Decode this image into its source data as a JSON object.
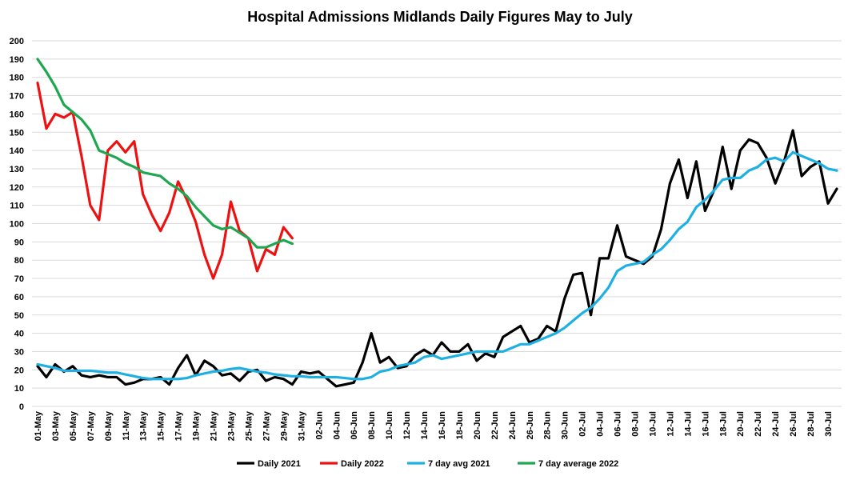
{
  "chart_data": {
    "type": "line",
    "title": "Hospital Admissions Midlands Daily Figures May to July",
    "xlabel": "",
    "ylabel": "",
    "ylim": [
      0,
      200
    ],
    "ytick_step": 10,
    "grid": true,
    "legend_position": "bottom",
    "x_tick_labels": [
      "01-May",
      "03-May",
      "05-May",
      "07-May",
      "09-May",
      "11-May",
      "13-May",
      "15-May",
      "17-May",
      "19-May",
      "21-May",
      "23-May",
      "25-May",
      "27-May",
      "29-May",
      "31-May",
      "02-Jun",
      "04-Jun",
      "06-Jun",
      "08-Jun",
      "10-Jun",
      "12-Jun",
      "14-Jun",
      "16-Jun",
      "18-Jun",
      "20-Jun",
      "22-Jun",
      "24-Jun",
      "26-Jun",
      "28-Jun",
      "30-Jun",
      "02-Jul",
      "04-Jul",
      "06-Jul",
      "08-Jul",
      "10-Jul",
      "12-Jul",
      "14-Jul",
      "16-Jul",
      "18-Jul",
      "20-Jul",
      "22-Jul",
      "24-Jul",
      "26-Jul",
      "28-Jul",
      "30-Jul"
    ],
    "series": [
      {
        "name": "Daily 2021",
        "color": "#000000",
        "values": [
          22,
          16,
          23,
          19,
          22,
          17,
          16,
          17,
          16,
          16,
          12,
          13,
          15,
          15,
          16,
          12,
          21,
          28,
          17,
          25,
          22,
          17,
          18,
          14,
          19,
          20,
          14,
          16,
          15,
          12,
          19,
          18,
          19,
          15,
          11,
          12,
          13,
          24,
          40,
          24,
          27,
          21,
          22,
          28,
          31,
          28,
          35,
          30,
          30,
          34,
          25,
          29,
          27,
          38,
          41,
          44,
          35,
          37,
          44,
          41,
          59,
          72,
          73,
          50,
          81,
          81,
          99,
          82,
          80,
          78,
          82,
          97,
          122,
          135,
          114,
          134,
          107,
          118,
          142,
          119,
          140,
          146,
          144,
          136,
          122,
          134,
          151,
          126,
          131,
          134,
          111,
          119
        ]
      },
      {
        "name": "Daily 2022",
        "color": "#ee1111",
        "values": [
          177,
          152,
          160,
          158,
          161,
          137,
          110,
          102,
          140,
          145,
          139,
          145,
          116,
          105,
          96,
          106,
          123,
          113,
          101,
          83,
          70,
          83,
          112,
          96,
          92,
          74,
          86,
          83,
          98,
          92
        ]
      },
      {
        "name": "7 day avg 2021",
        "color": "#1fb0e3",
        "values": [
          23,
          22,
          21,
          19.5,
          19.5,
          19.5,
          19.5,
          19,
          18.5,
          18.5,
          17.5,
          16.5,
          15.5,
          15,
          15,
          15,
          15,
          15.5,
          17,
          18,
          19,
          19.5,
          20.5,
          21,
          20,
          19,
          18.5,
          17.5,
          17,
          16.5,
          16.5,
          16,
          16,
          16,
          16,
          15.5,
          15,
          15,
          16,
          19,
          20,
          22,
          23,
          24,
          27,
          28,
          26,
          27,
          28,
          29,
          30,
          30,
          30,
          30,
          32,
          34,
          34,
          36,
          38,
          40,
          43,
          47,
          51,
          54,
          59,
          65,
          74,
          77,
          78,
          79,
          83,
          86,
          91,
          97,
          101,
          109,
          113,
          118,
          124,
          125,
          125,
          129,
          131,
          135,
          136,
          134,
          139,
          137,
          135,
          133,
          130,
          129
        ]
      },
      {
        "name": "7 day average 2022",
        "color": "#1ea750",
        "values": [
          190,
          183,
          175,
          165,
          161,
          157,
          151,
          140,
          138,
          136,
          133,
          131,
          128,
          127,
          126,
          122,
          119,
          115,
          109,
          104,
          99,
          97,
          98,
          95,
          92,
          87,
          87,
          89,
          91,
          89
        ]
      }
    ]
  }
}
